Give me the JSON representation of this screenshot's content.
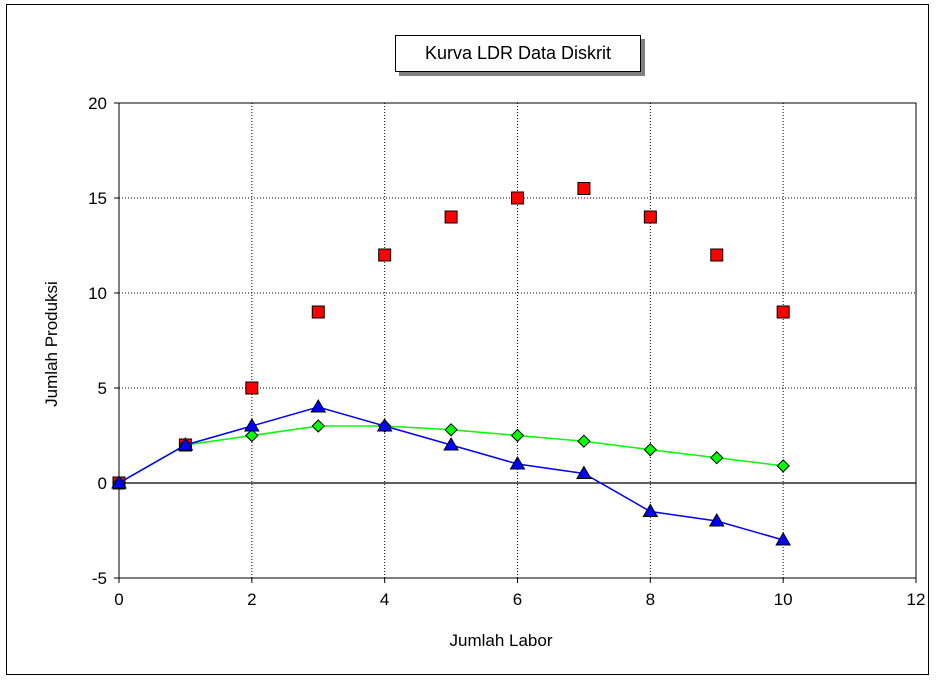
{
  "chart_data": {
    "type": "scatter",
    "title": "Kurva LDR Data Diskrit",
    "xlabel": "Jumlah Labor",
    "ylabel": "Jumlah Produksi",
    "xlim": [
      0,
      12
    ],
    "ylim": [
      -5,
      20
    ],
    "xticks": [
      "0",
      "2",
      "4",
      "6",
      "8",
      "10",
      "12"
    ],
    "yticks": [
      "20",
      "15",
      "10",
      "5",
      "0",
      "-5"
    ],
    "grid": true,
    "series": [
      {
        "marker": "square",
        "line": false,
        "color": "#ff0000",
        "x": [
          0,
          1,
          2,
          3,
          4,
          5,
          6,
          7,
          8,
          9,
          10
        ],
        "y": [
          0,
          2,
          5,
          9,
          12,
          14,
          15,
          15.5,
          14,
          12,
          9
        ]
      },
      {
        "marker": "diamond",
        "line": true,
        "color": "#00ff00",
        "x": [
          0,
          1,
          2,
          3,
          4,
          5,
          6,
          7,
          8,
          9,
          10
        ],
        "y": [
          0,
          2,
          2.5,
          3,
          3,
          2.8,
          2.5,
          2.2,
          1.75,
          1.33,
          0.9
        ]
      },
      {
        "marker": "triangle",
        "line": true,
        "color": "#0000ff",
        "x": [
          0,
          1,
          2,
          3,
          4,
          5,
          6,
          7,
          8,
          9,
          10
        ],
        "y": [
          0,
          2,
          3,
          4,
          3,
          2,
          1,
          0.5,
          -1.5,
          -2,
          -3
        ]
      }
    ]
  }
}
